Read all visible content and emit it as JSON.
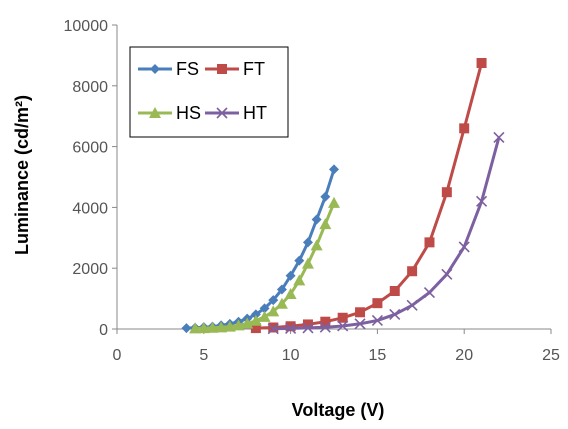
{
  "chart_data": {
    "type": "line",
    "xlabel": "Voltage (V)",
    "ylabel": "Luminance (cd/m²)",
    "xlim": [
      0,
      25
    ],
    "ylim": [
      0,
      10000
    ],
    "xticks": [
      "0",
      "5",
      "10",
      "15",
      "20",
      "25"
    ],
    "yticks": [
      "0",
      "2000",
      "4000",
      "6000",
      "8000",
      "10000"
    ],
    "grid": false,
    "legend": "top-left",
    "series": [
      {
        "name": "FS",
        "color": "#4a7ebb",
        "marker": "diamond",
        "x": [
          4.0,
          4.5,
          5.0,
          5.5,
          6.0,
          6.5,
          7.0,
          7.5,
          8.0,
          8.5,
          9.0,
          9.5,
          10.0,
          10.5,
          11.0,
          11.5,
          12.0,
          12.5
        ],
        "y": [
          30,
          40,
          60,
          80,
          120,
          170,
          240,
          340,
          480,
          680,
          950,
          1300,
          1750,
          2250,
          2850,
          3600,
          4350,
          5250
        ]
      },
      {
        "name": "FT",
        "color": "#be4b48",
        "marker": "square",
        "x": [
          8,
          9,
          10,
          11,
          12,
          13,
          14,
          15,
          16,
          17,
          18,
          19,
          20,
          21
        ],
        "y": [
          30,
          50,
          90,
          150,
          240,
          370,
          550,
          850,
          1250,
          1900,
          2850,
          4500,
          6600,
          8750
        ]
      },
      {
        "name": "HS",
        "color": "#98b954",
        "marker": "triangle",
        "x": [
          4.5,
          5.0,
          5.5,
          6.0,
          6.5,
          7.0,
          7.5,
          8.0,
          8.5,
          9.0,
          9.5,
          10.0,
          10.5,
          11.0,
          11.5,
          12.0,
          12.5
        ],
        "y": [
          20,
          30,
          40,
          55,
          80,
          120,
          180,
          270,
          400,
          580,
          830,
          1150,
          1600,
          2150,
          2750,
          3450,
          4150
        ]
      },
      {
        "name": "HT",
        "color": "#7d60a0",
        "marker": "x",
        "x": [
          9,
          10,
          11,
          12,
          13,
          14,
          15,
          16,
          17,
          18,
          19,
          20,
          21,
          22
        ],
        "y": [
          10,
          20,
          35,
          60,
          100,
          170,
          280,
          480,
          780,
          1200,
          1800,
          2700,
          4200,
          6300
        ]
      }
    ]
  }
}
